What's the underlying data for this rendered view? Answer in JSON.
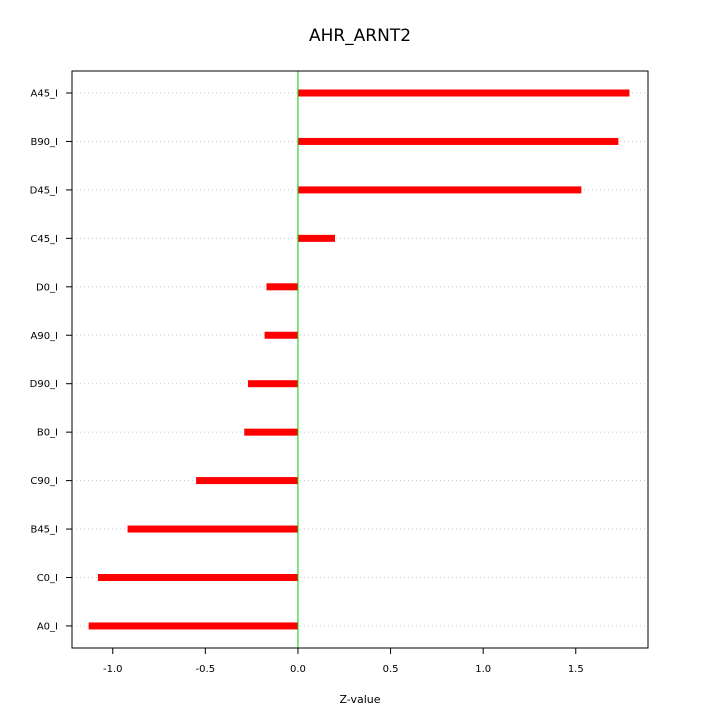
{
  "chart_data": {
    "type": "bar",
    "orientation": "horizontal",
    "title": "AHR_ARNT2",
    "xlabel": "Z-value",
    "ylabel": "",
    "xlim": [
      -1.22,
      1.89
    ],
    "xticks": [
      -1.0,
      -0.5,
      0.0,
      0.5,
      1.0,
      1.5
    ],
    "xtick_labels": [
      "-1.0",
      "-0.5",
      "0.0",
      "0.5",
      "1.0",
      "1.5"
    ],
    "categories": [
      "A45_I",
      "B90_I",
      "D45_I",
      "C45_I",
      "D0_I",
      "A90_I",
      "D90_I",
      "B0_I",
      "C90_I",
      "B45_I",
      "C0_I",
      "A0_I"
    ],
    "values": [
      1.79,
      1.73,
      1.53,
      0.2,
      -0.17,
      -0.18,
      -0.27,
      -0.29,
      -0.55,
      -0.92,
      -1.08,
      -1.13
    ],
    "bar_color": "#ff0000",
    "zero_line_color": "#00cc00",
    "grid": "horizontal dotted"
  }
}
